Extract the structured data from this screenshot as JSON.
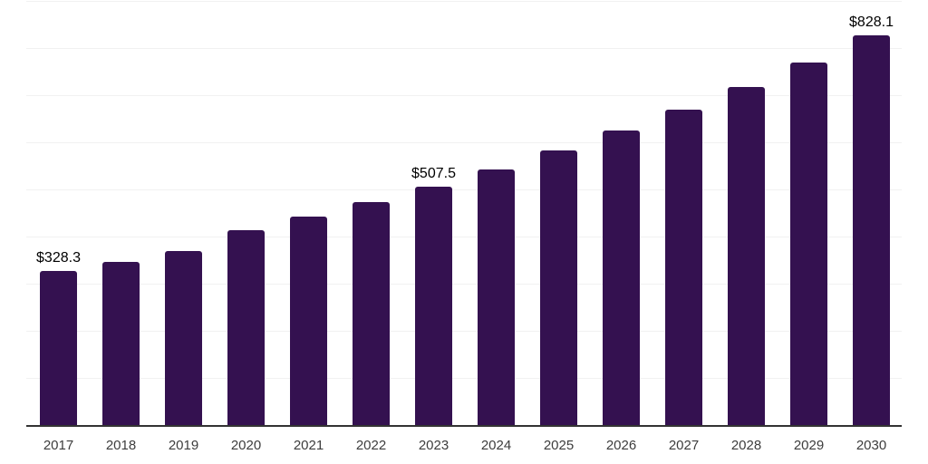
{
  "chart_data": {
    "type": "bar",
    "title": "",
    "xlabel": "",
    "ylabel": "",
    "categories": [
      "2017",
      "2018",
      "2019",
      "2020",
      "2021",
      "2022",
      "2023",
      "2024",
      "2025",
      "2026",
      "2027",
      "2028",
      "2029",
      "2030"
    ],
    "values": [
      328.3,
      348.4,
      371.4,
      415.4,
      443.7,
      475.2,
      507.5,
      544.3,
      583.7,
      626.0,
      671.4,
      719.9,
      772.1,
      828.1
    ],
    "visible_labels": {
      "2017": "$328.3",
      "2023": "$507.5",
      "2030": "$828.1"
    },
    "ylim": [
      0,
      900
    ],
    "gridline_step": 100,
    "grid": true,
    "legend_position": "none",
    "y_axis_tick_labels_shown": false,
    "bar_color": "#341150",
    "axis_line_color": "#333333",
    "gridline_color": "#f1f1f1",
    "data_label_color": "#000000",
    "tick_label_color": "#3d3d3d",
    "background_color": "#ffffff"
  }
}
